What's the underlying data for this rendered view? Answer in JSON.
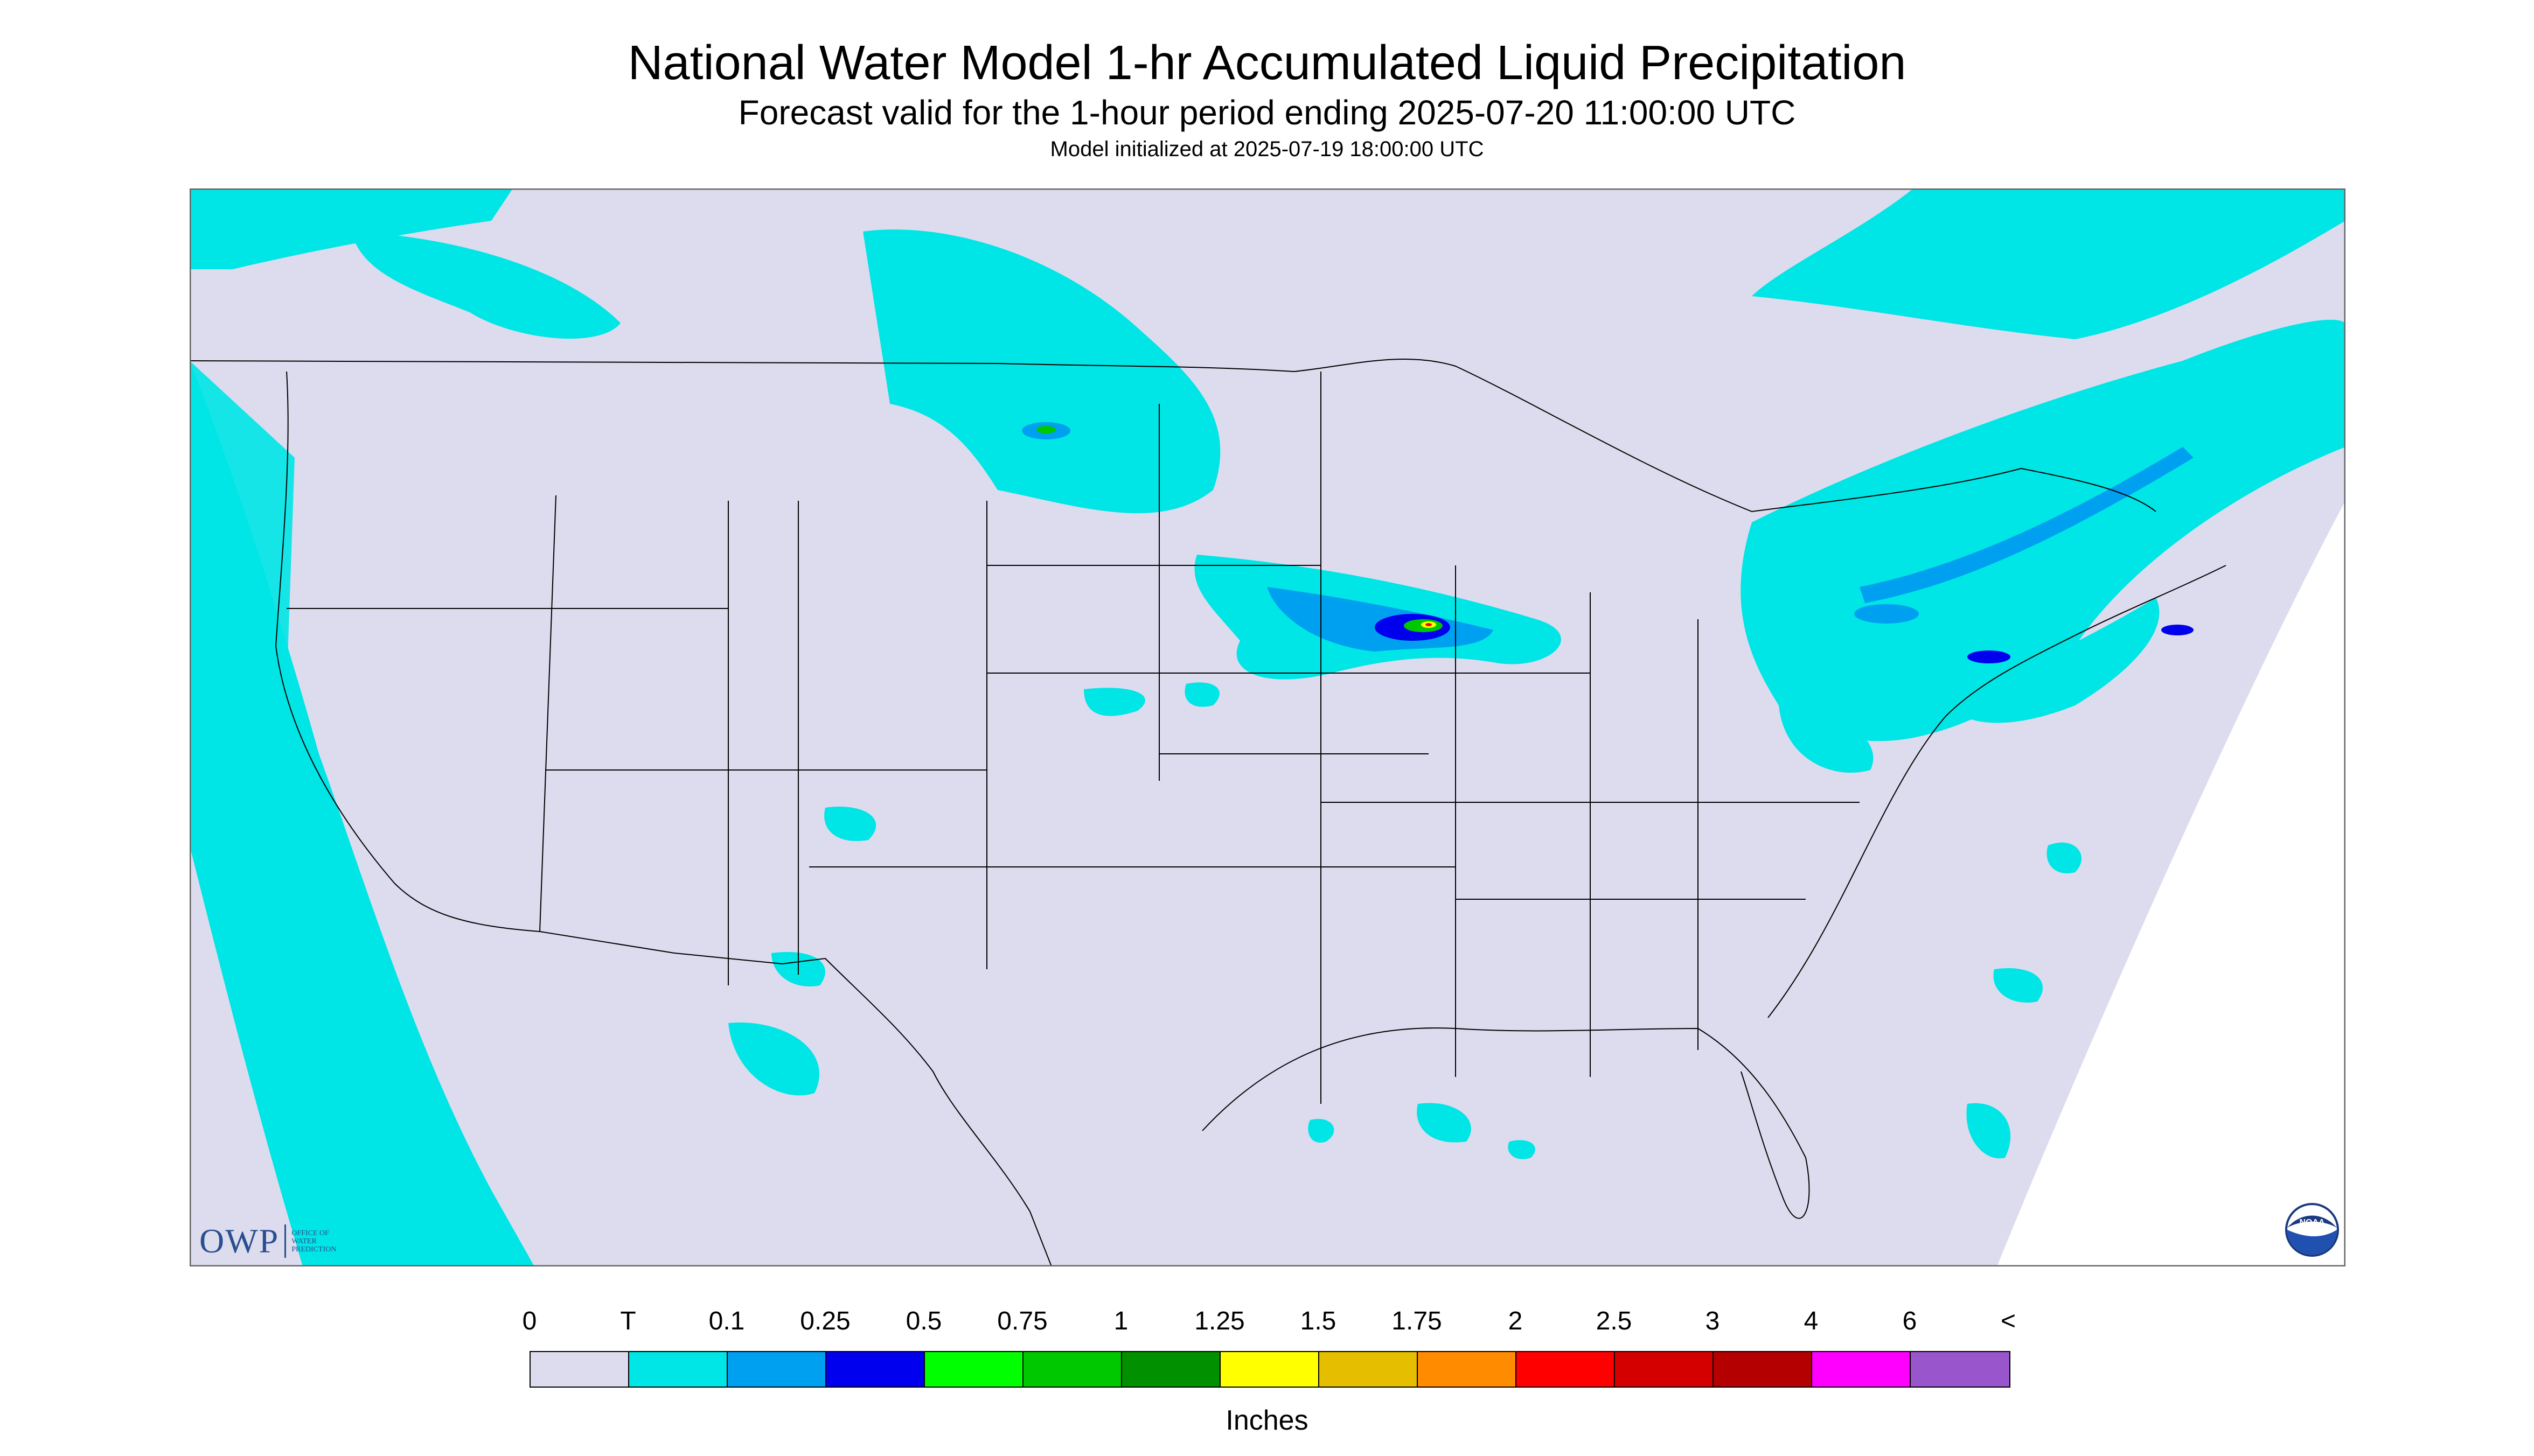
{
  "title": "National Water Model 1-hr Accumulated Liquid Precipitation",
  "subtitle": "Forecast valid for the 1-hour period ending 2025-07-20 11:00:00 UTC",
  "init_line": "Model initialized at 2025-07-19 18:00:00 UTC",
  "logos": {
    "owp_text": "OWP",
    "owp_small": [
      "OFFICE OF",
      "WATER",
      "PREDICTION"
    ],
    "noaa_text": "NOAA"
  },
  "legend": {
    "labels": [
      "0",
      "T",
      "0.1",
      "0.25",
      "0.5",
      "0.75",
      "1",
      "1.25",
      "1.5",
      "1.75",
      "2",
      "2.5",
      "3",
      "4",
      "6",
      "<"
    ],
    "colors": [
      "#dcdcee",
      "#00e5e5",
      "#00a0f0",
      "#0000ee",
      "#00ff00",
      "#00c800",
      "#009000",
      "#ffff00",
      "#e6be00",
      "#ff8c00",
      "#ff0000",
      "#d40000",
      "#b40000",
      "#ff00ff",
      "#9955cc"
    ],
    "units": "Inches"
  },
  "colors": {
    "background_land": "#dcdcee",
    "trace": "#00e5e5",
    "light": "#00a0f0",
    "moderate": "#0000ee",
    "boundary": "#000000"
  }
}
